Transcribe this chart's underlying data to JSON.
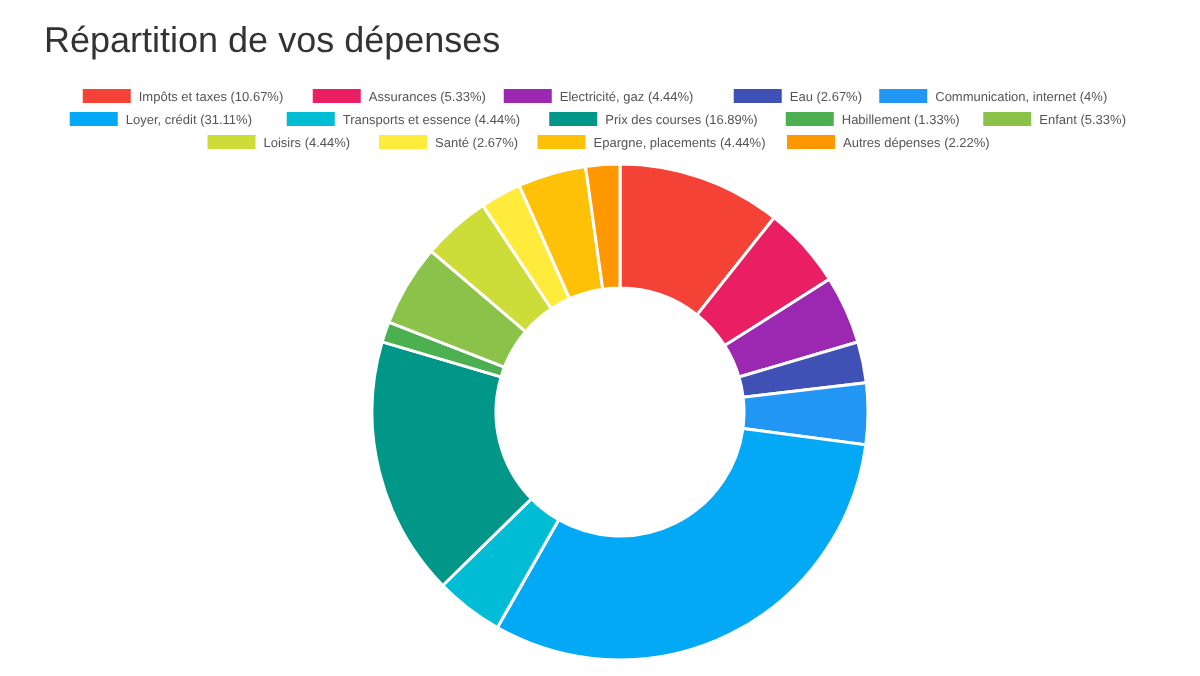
{
  "chart_data": {
    "type": "donut",
    "title": "Répartition de vos dépenses",
    "categories": [
      "Impôts et taxes (10.67%)",
      "Assurances (5.33%)",
      "Electricité, gaz (4.44%)",
      "Eau (2.67%)",
      "Communication, internet (4%)",
      "Loyer, crédit (31.11%)",
      "Transports et essence (4.44%)",
      "Prix des courses (16.89%)",
      "Habillement (1.33%)",
      "Enfant (5.33%)",
      "Loisirs (4.44%)",
      "Santé (2.67%)",
      "Epargne, placements (4.44%)",
      "Autres dépenses (2.22%)"
    ],
    "values": [
      10.67,
      5.33,
      4.44,
      2.67,
      4,
      31.11,
      4.44,
      16.89,
      1.33,
      5.33,
      4.44,
      2.67,
      4.44,
      2.22
    ],
    "colors": [
      "#f44336",
      "#e91e63",
      "#9c27b0",
      "#3f51b5",
      "#2196f3",
      "#03a9f4",
      "#00bcd4",
      "#009688",
      "#4caf50",
      "#8bc34a",
      "#cddc39",
      "#ffeb3b",
      "#ffc107",
      "#ff9800"
    ],
    "legend": "top"
  }
}
